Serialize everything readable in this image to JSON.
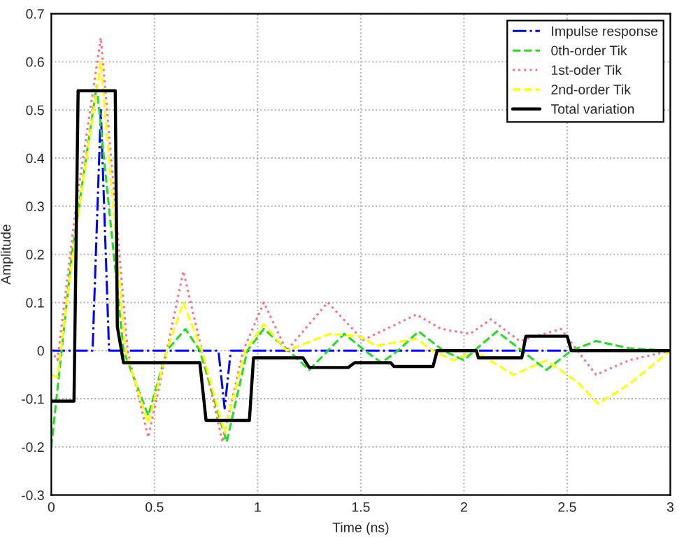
{
  "chart_data": {
    "type": "line",
    "xlabel": "Time (ns)",
    "ylabel": "Amplitude",
    "xlim": [
      0,
      3
    ],
    "ylim": [
      -0.3,
      0.7
    ],
    "xticks": [
      0,
      0.5,
      1,
      1.5,
      2,
      2.5,
      3
    ],
    "yticks": [
      -0.3,
      -0.2,
      -0.1,
      0,
      0.1,
      0.2,
      0.3,
      0.4,
      0.5,
      0.6,
      0.7
    ],
    "grid": true,
    "legend": "top right",
    "series": [
      {
        "name": "Impulse response",
        "color": "#0000ff",
        "line_style": "dashdot",
        "x": [
          0,
          0.2,
          0.24,
          0.28,
          0.81,
          0.84,
          0.87,
          3
        ],
        "values": [
          0,
          0,
          0.5,
          0,
          0,
          -0.12,
          0,
          0
        ]
      },
      {
        "name": "0th-order Tik",
        "color": "#22dd22",
        "line_style": "dashed",
        "x": [
          0,
          0.1,
          0.22,
          0.35,
          0.47,
          0.56,
          0.65,
          0.72,
          0.85,
          0.95,
          1.03,
          1.15,
          1.25,
          1.42,
          1.52,
          1.6,
          1.68,
          1.78,
          1.9,
          2.0,
          2.05,
          2.16,
          2.28,
          2.4,
          2.52,
          2.64,
          2.8,
          3
        ],
        "values": [
          -0.2,
          0.2,
          0.55,
          0,
          -0.135,
          0,
          0.045,
          0,
          -0.19,
          0,
          0.045,
          0,
          -0.04,
          0.035,
          0,
          -0.025,
          0,
          0.04,
          0,
          -0.02,
          0,
          0.04,
          0,
          -0.04,
          0,
          0.02,
          0.005,
          0
        ]
      },
      {
        "name": "1st-oder Tik",
        "color": "#ff6f7f",
        "line_style": "dotted",
        "x": [
          0,
          0.03,
          0.12,
          0.24,
          0.37,
          0.47,
          0.56,
          0.64,
          0.73,
          0.83,
          0.93,
          1.03,
          1.14,
          1.34,
          1.51,
          1.77,
          1.89,
          2.03,
          2.13,
          2.27,
          2.47,
          2.55,
          2.64,
          2.8,
          3
        ],
        "values": [
          0,
          -0.02,
          0.3,
          0.65,
          0,
          -0.18,
          0,
          0.165,
          0,
          -0.19,
          0,
          0.1,
          0,
          0.1,
          0.022,
          0.075,
          0.045,
          0.035,
          0.065,
          0.02,
          0.045,
          0,
          -0.05,
          -0.02,
          0
        ]
      },
      {
        "name": "2nd-order Tik",
        "color": "#ffff00",
        "line_style": "dashed",
        "x": [
          0,
          0.03,
          0.12,
          0.24,
          0.36,
          0.47,
          0.56,
          0.64,
          0.73,
          0.84,
          0.94,
          1.03,
          1.14,
          1.35,
          1.5,
          1.57,
          1.77,
          1.85,
          1.95,
          2.05,
          2.24,
          2.4,
          2.55,
          2.65,
          2.8,
          3
        ],
        "values": [
          -0.05,
          -0.055,
          0.25,
          0.6,
          0,
          -0.15,
          0,
          0.1,
          0,
          -0.17,
          0,
          0.055,
          0,
          0.035,
          0.03,
          0.01,
          0.025,
          0,
          -0.02,
          0,
          -0.05,
          -0.02,
          -0.065,
          -0.11,
          -0.07,
          0
        ]
      },
      {
        "name": "Total variation",
        "color": "#000000",
        "line_style": "solid",
        "x": [
          0,
          0.11,
          0.13,
          0.31,
          0.32,
          0.35,
          0.72,
          0.75,
          0.96,
          0.98,
          1.22,
          1.25,
          1.44,
          1.47,
          1.645,
          1.66,
          1.85,
          1.87,
          2.06,
          2.07,
          2.28,
          2.3,
          2.5,
          2.52,
          3
        ],
        "values": [
          -0.105,
          -0.105,
          0.54,
          0.54,
          0.05,
          -0.025,
          -0.025,
          -0.145,
          -0.145,
          -0.015,
          -0.015,
          -0.035,
          -0.035,
          -0.025,
          -0.025,
          -0.033,
          -0.033,
          0,
          0,
          -0.015,
          -0.015,
          0.03,
          0.03,
          0,
          0
        ]
      }
    ]
  }
}
